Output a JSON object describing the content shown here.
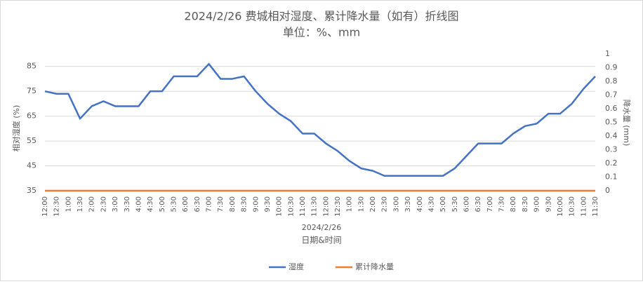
{
  "chart_data": {
    "type": "line",
    "title": "2024/2/26 费城相对湿度、累计降水量（如有）折线图",
    "subtitle": "单位：%、mm",
    "x_group_label": "2024/2/26",
    "x_label": "日期&时间",
    "y_label": "相对湿度 (%)",
    "y2_label": "降水量 (mm)",
    "categories": [
      "12:00",
      "12:30",
      "1:00",
      "1:30",
      "2:00",
      "2:30",
      "3:00",
      "3:30",
      "4:00",
      "4:30",
      "5:00",
      "5:30",
      "6:00",
      "6:30",
      "7:00",
      "7:30",
      "8:00",
      "8:30",
      "9:00",
      "9:30",
      "10:00",
      "10:30",
      "11:00",
      "11:30",
      "12:00",
      "12:30",
      "1:00",
      "1:30",
      "2:00",
      "2:30",
      "3:00",
      "3:30",
      "4:00",
      "4:30",
      "5:00",
      "5:30",
      "6:00",
      "6:30",
      "7:00",
      "7:30",
      "8:00",
      "8:30",
      "9:00",
      "9:30",
      "10:00",
      "10:30",
      "11:00",
      "11:30"
    ],
    "series": [
      {
        "name": "湿度",
        "color": "#4472c4",
        "values": [
          75,
          74,
          74,
          64,
          69,
          71,
          69,
          69,
          69,
          75,
          75,
          81,
          81,
          81,
          86,
          80,
          80,
          81,
          75,
          70,
          66,
          63,
          58,
          58,
          54,
          51,
          47,
          44,
          43,
          41,
          41,
          41,
          41,
          41,
          41,
          44,
          49,
          54,
          54,
          54,
          58,
          61,
          62,
          66,
          66,
          70,
          76,
          81
        ]
      },
      {
        "name": "累计降水量",
        "color": "#ed7d31",
        "axis": "y2",
        "values": [
          0,
          0,
          0,
          0,
          0,
          0,
          0,
          0,
          0,
          0,
          0,
          0,
          0,
          0,
          0,
          0,
          0,
          0,
          0,
          0,
          0,
          0,
          0,
          0,
          0,
          0,
          0,
          0,
          0,
          0,
          0,
          0,
          0,
          0,
          0,
          0,
          0,
          0,
          0,
          0,
          0,
          0,
          0,
          0,
          0,
          0,
          0,
          0
        ]
      }
    ],
    "ylim": [
      35,
      90
    ],
    "yticks": [
      35,
      45,
      55,
      65,
      75,
      85
    ],
    "y2lim": [
      0,
      1
    ],
    "y2ticks": [
      0,
      0.1,
      0.2,
      0.3,
      0.4,
      0.5,
      0.6,
      0.7,
      0.8,
      0.9,
      1
    ],
    "grid": true
  }
}
